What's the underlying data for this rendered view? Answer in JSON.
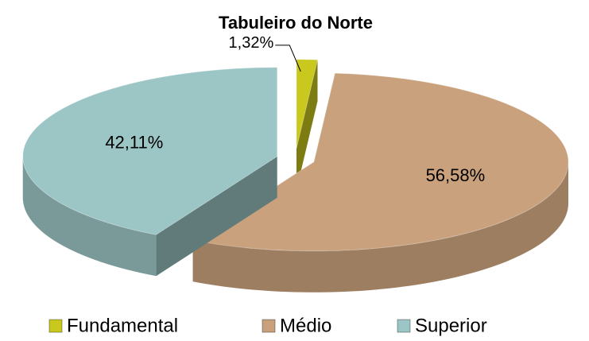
{
  "chart_data": {
    "type": "pie",
    "title": "Tabuleiro do Norte",
    "categories": [
      "Fundamental",
      "Médio",
      "Superior"
    ],
    "values": [
      1.32,
      56.58,
      42.11
    ],
    "value_labels": [
      "1,32%",
      "56,58%",
      "42,11%"
    ],
    "colors": [
      "#c8c81e",
      "#c9a17c",
      "#9cc6c6"
    ],
    "legend": "bottom"
  }
}
